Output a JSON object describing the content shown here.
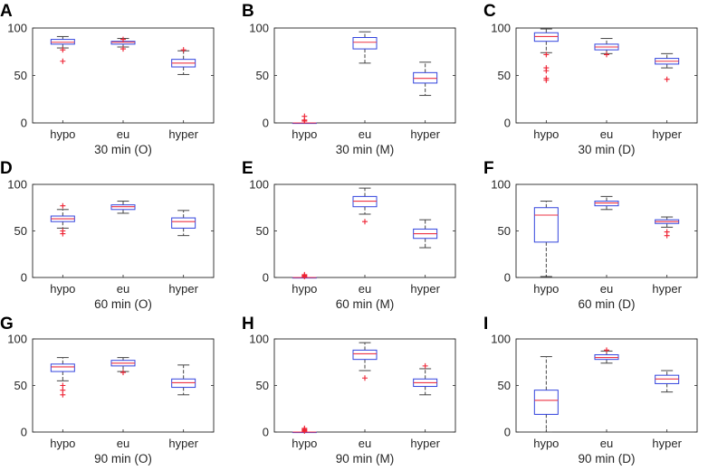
{
  "chart_data": [
    {
      "letter": "A",
      "type": "box",
      "title": "",
      "xlabel": "30 min (O)",
      "categories": [
        "hypo",
        "eu",
        "hyper"
      ],
      "ylim": [
        0,
        100
      ],
      "yticks": [
        0,
        50,
        100
      ],
      "boxes": [
        {
          "category": "hypo",
          "whisker_low": 79,
          "q1": 83,
          "median": 85,
          "q3": 88,
          "whisker_high": 91,
          "outliers": [
            65,
            77
          ]
        },
        {
          "category": "eu",
          "whisker_low": 80,
          "q1": 83,
          "median": 85,
          "q3": 86,
          "whisker_high": 89,
          "outliers": [
            78,
            88
          ]
        },
        {
          "category": "hyper",
          "whisker_low": 51,
          "q1": 59,
          "median": 63,
          "q3": 67,
          "whisker_high": 76,
          "outliers": [
            77
          ]
        }
      ]
    },
    {
      "letter": "B",
      "type": "box",
      "title": "",
      "xlabel": "30 min (M)",
      "categories": [
        "hypo",
        "eu",
        "hyper"
      ],
      "ylim": [
        0,
        100
      ],
      "yticks": [
        0,
        50,
        100
      ],
      "boxes": [
        {
          "category": "hypo",
          "whisker_low": 0,
          "q1": 0,
          "median": 0,
          "q3": 0,
          "whisker_high": 0,
          "outliers": [
            2,
            3,
            7
          ]
        },
        {
          "category": "eu",
          "whisker_low": 63,
          "q1": 78,
          "median": 85,
          "q3": 90,
          "whisker_high": 96,
          "outliers": []
        },
        {
          "category": "hyper",
          "whisker_low": 29,
          "q1": 42,
          "median": 47,
          "q3": 53,
          "whisker_high": 64,
          "outliers": []
        }
      ]
    },
    {
      "letter": "C",
      "type": "box",
      "title": "",
      "xlabel": "30 min (D)",
      "categories": [
        "hypo",
        "eu",
        "hyper"
      ],
      "ylim": [
        0,
        100
      ],
      "yticks": [
        0,
        50,
        100
      ],
      "boxes": [
        {
          "category": "hypo",
          "whisker_low": 74,
          "q1": 86,
          "median": 91,
          "q3": 95,
          "whisker_high": 99,
          "outliers": [
            45,
            47,
            55,
            58,
            72
          ]
        },
        {
          "category": "eu",
          "whisker_low": 73,
          "q1": 77,
          "median": 80,
          "q3": 83,
          "whisker_high": 89,
          "outliers": [
            72
          ]
        },
        {
          "category": "hyper",
          "whisker_low": 58,
          "q1": 62,
          "median": 65,
          "q3": 68,
          "whisker_high": 73,
          "outliers": [
            46
          ]
        }
      ]
    },
    {
      "letter": "D",
      "type": "box",
      "title": "",
      "xlabel": "60 min (O)",
      "categories": [
        "hypo",
        "eu",
        "hyper"
      ],
      "ylim": [
        0,
        100
      ],
      "yticks": [
        0,
        50,
        100
      ],
      "boxes": [
        {
          "category": "hypo",
          "whisker_low": 53,
          "q1": 60,
          "median": 63,
          "q3": 66,
          "whisker_high": 73,
          "outliers": [
            47,
            50,
            77
          ]
        },
        {
          "category": "eu",
          "whisker_low": 69,
          "q1": 73,
          "median": 76,
          "q3": 78,
          "whisker_high": 82,
          "outliers": []
        },
        {
          "category": "hyper",
          "whisker_low": 45,
          "q1": 53,
          "median": 60,
          "q3": 64,
          "whisker_high": 72,
          "outliers": []
        }
      ]
    },
    {
      "letter": "E",
      "type": "box",
      "title": "",
      "xlabel": "60 min (M)",
      "categories": [
        "hypo",
        "eu",
        "hyper"
      ],
      "ylim": [
        0,
        100
      ],
      "yticks": [
        0,
        50,
        100
      ],
      "boxes": [
        {
          "category": "hypo",
          "whisker_low": 0,
          "q1": 0,
          "median": 0,
          "q3": 0,
          "whisker_high": 0,
          "outliers": [
            1,
            2,
            3
          ]
        },
        {
          "category": "eu",
          "whisker_low": 68,
          "q1": 76,
          "median": 82,
          "q3": 87,
          "whisker_high": 96,
          "outliers": [
            60
          ]
        },
        {
          "category": "hyper",
          "whisker_low": 32,
          "q1": 42,
          "median": 47,
          "q3": 52,
          "whisker_high": 62,
          "outliers": []
        }
      ]
    },
    {
      "letter": "F",
      "type": "box",
      "title": "",
      "xlabel": "60 min (D)",
      "categories": [
        "hypo",
        "eu",
        "hyper"
      ],
      "ylim": [
        0,
        100
      ],
      "yticks": [
        0,
        50,
        100
      ],
      "boxes": [
        {
          "category": "hypo",
          "whisker_low": 1,
          "q1": 38,
          "median": 67,
          "q3": 75,
          "whisker_high": 82,
          "outliers": []
        },
        {
          "category": "eu",
          "whisker_low": 73,
          "q1": 77,
          "median": 80,
          "q3": 82,
          "whisker_high": 87,
          "outliers": []
        },
        {
          "category": "hyper",
          "whisker_low": 54,
          "q1": 58,
          "median": 60,
          "q3": 62,
          "whisker_high": 65,
          "outliers": [
            45,
            49
          ]
        }
      ]
    },
    {
      "letter": "G",
      "type": "box",
      "title": "",
      "xlabel": "90 min (O)",
      "categories": [
        "hypo",
        "eu",
        "hyper"
      ],
      "ylim": [
        0,
        100
      ],
      "yticks": [
        0,
        50,
        100
      ],
      "boxes": [
        {
          "category": "hypo",
          "whisker_low": 55,
          "q1": 65,
          "median": 70,
          "q3": 73,
          "whisker_high": 80,
          "outliers": [
            40,
            45,
            50
          ]
        },
        {
          "category": "eu",
          "whisker_low": 65,
          "q1": 71,
          "median": 74,
          "q3": 77,
          "whisker_high": 80,
          "outliers": [
            64
          ]
        },
        {
          "category": "hyper",
          "whisker_low": 40,
          "q1": 48,
          "median": 53,
          "q3": 57,
          "whisker_high": 72,
          "outliers": []
        }
      ]
    },
    {
      "letter": "H",
      "type": "box",
      "title": "",
      "xlabel": "90 min (M)",
      "categories": [
        "hypo",
        "eu",
        "hyper"
      ],
      "ylim": [
        0,
        100
      ],
      "yticks": [
        0,
        50,
        100
      ],
      "boxes": [
        {
          "category": "hypo",
          "whisker_low": 0,
          "q1": 0,
          "median": 0,
          "q3": 0,
          "whisker_high": 0,
          "outliers": [
            1,
            2,
            3,
            4
          ]
        },
        {
          "category": "eu",
          "whisker_low": 66,
          "q1": 78,
          "median": 84,
          "q3": 88,
          "whisker_high": 96,
          "outliers": [
            58
          ]
        },
        {
          "category": "hyper",
          "whisker_low": 40,
          "q1": 49,
          "median": 53,
          "q3": 57,
          "whisker_high": 68,
          "outliers": [
            71
          ]
        }
      ]
    },
    {
      "letter": "I",
      "type": "box",
      "title": "",
      "xlabel": "90 min (D)",
      "categories": [
        "hypo",
        "eu",
        "hyper"
      ],
      "ylim": [
        0,
        100
      ],
      "yticks": [
        0,
        50,
        100
      ],
      "boxes": [
        {
          "category": "hypo",
          "whisker_low": 0,
          "q1": 19,
          "median": 34,
          "q3": 45,
          "whisker_high": 81,
          "outliers": []
        },
        {
          "category": "eu",
          "whisker_low": 74,
          "q1": 78,
          "median": 80,
          "q3": 83,
          "whisker_high": 87,
          "outliers": [
            88
          ]
        },
        {
          "category": "hyper",
          "whisker_low": 43,
          "q1": 52,
          "median": 57,
          "q3": 61,
          "whisker_high": 66,
          "outliers": []
        }
      ]
    }
  ],
  "colors": {
    "box": "#3344dd",
    "median": "#ee3344",
    "whisker": "#444444",
    "outlier": "#ee2233",
    "axis": "#262626"
  }
}
